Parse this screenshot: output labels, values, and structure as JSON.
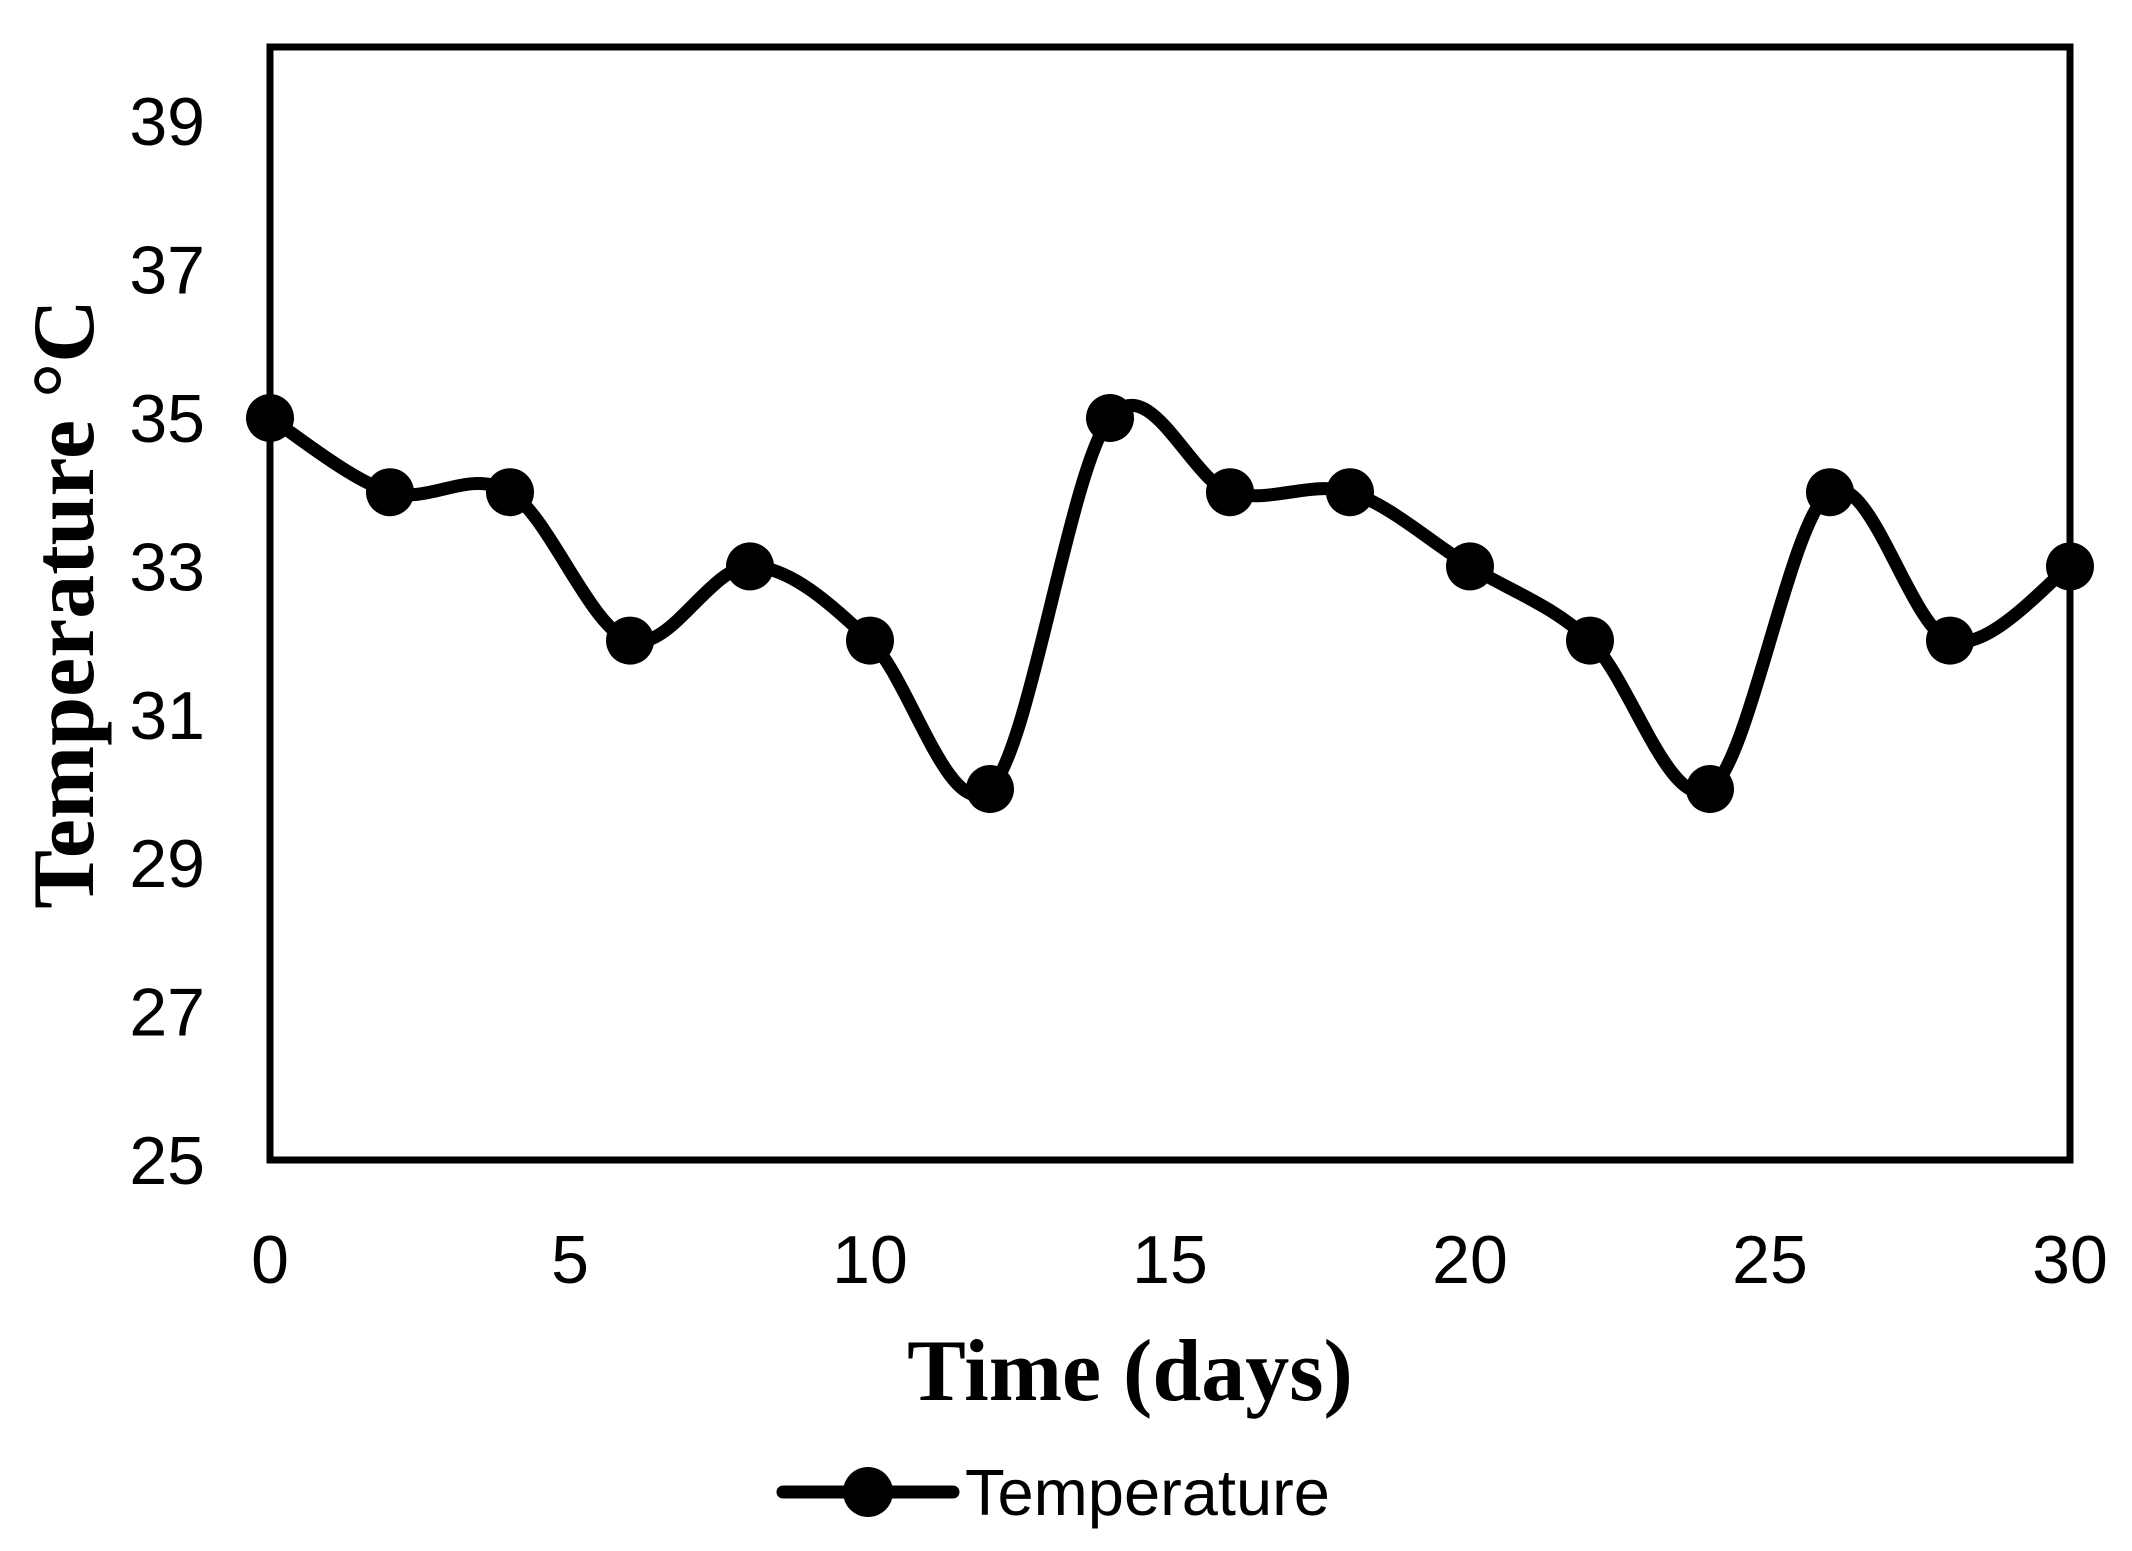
{
  "chart_data": {
    "type": "line",
    "title": "",
    "xlabel": "Time (days)",
    "ylabel": "Temperature °C",
    "x": [
      0,
      2,
      4,
      6,
      8,
      10,
      12,
      14,
      16,
      18,
      20,
      22,
      24,
      26,
      28,
      30
    ],
    "series": [
      {
        "name": "Temperature",
        "values": [
          35,
          34,
          34,
          32,
          33,
          32,
          30,
          35,
          34,
          34,
          33,
          32,
          30,
          34,
          32,
          33
        ]
      }
    ],
    "xlim": [
      0,
      30
    ],
    "ylim": [
      25,
      40
    ],
    "xticks": [
      0,
      5,
      10,
      15,
      20,
      25,
      30
    ],
    "yticks": [
      25,
      27,
      29,
      31,
      33,
      35,
      37,
      39
    ],
    "grid": false,
    "legend_position": "bottom",
    "line_style": "smooth",
    "marker": "circle",
    "colors": {
      "line": "#000000",
      "marker": "#000000",
      "border": "#000000",
      "background": "#ffffff",
      "text": "#000000"
    }
  }
}
